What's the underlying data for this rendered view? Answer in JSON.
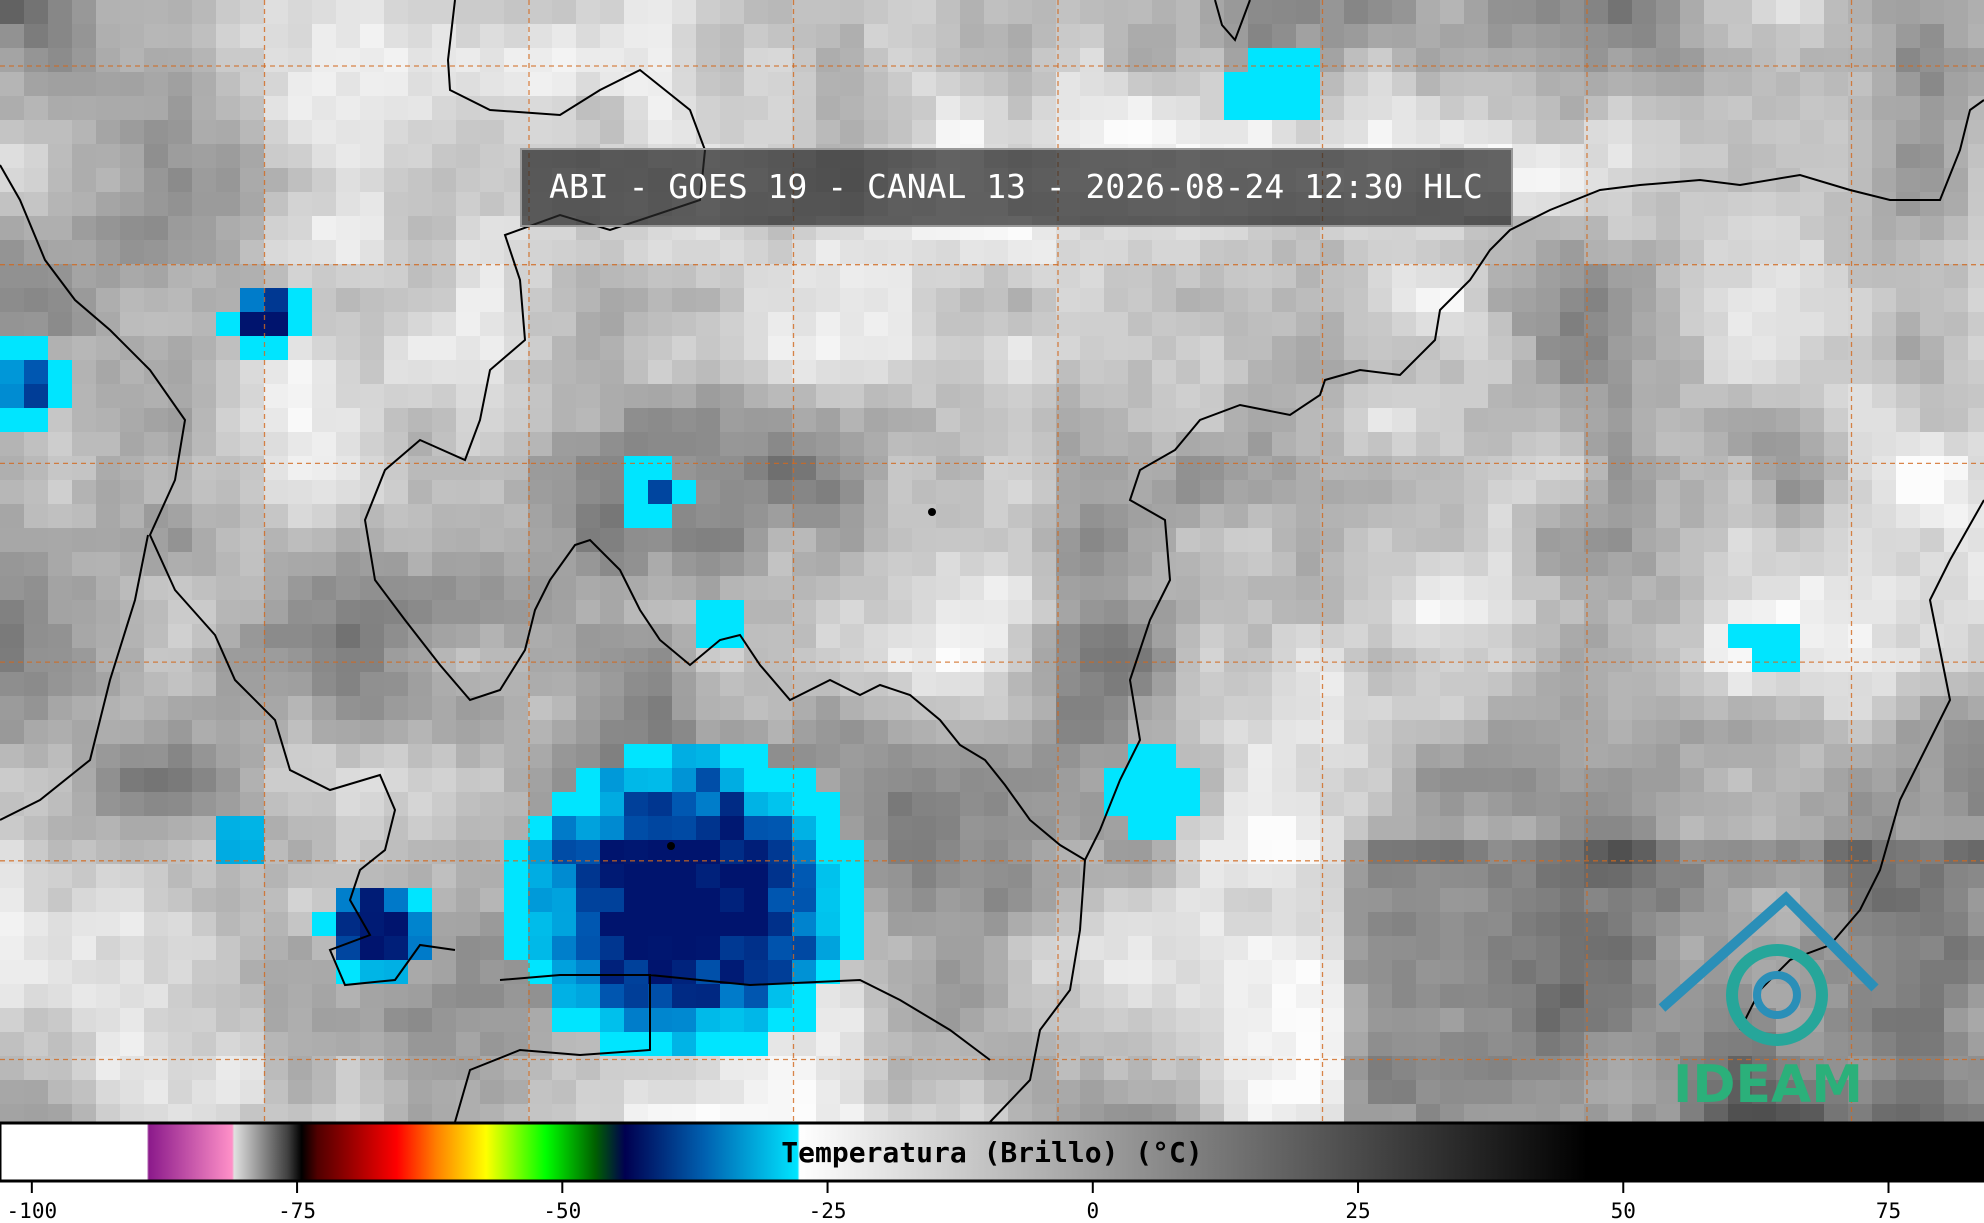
{
  "title": "ABI - GOES 19 - CANAL 13 - 2026-08-24 12:30 HLC",
  "colorbar": {
    "label": "Temperatura (Brillo) (°C)",
    "range": [
      -103,
      84
    ],
    "ticks": [
      -100,
      -75,
      -50,
      -25,
      0,
      25,
      50,
      75
    ]
  },
  "logo": "IDEAM"
}
